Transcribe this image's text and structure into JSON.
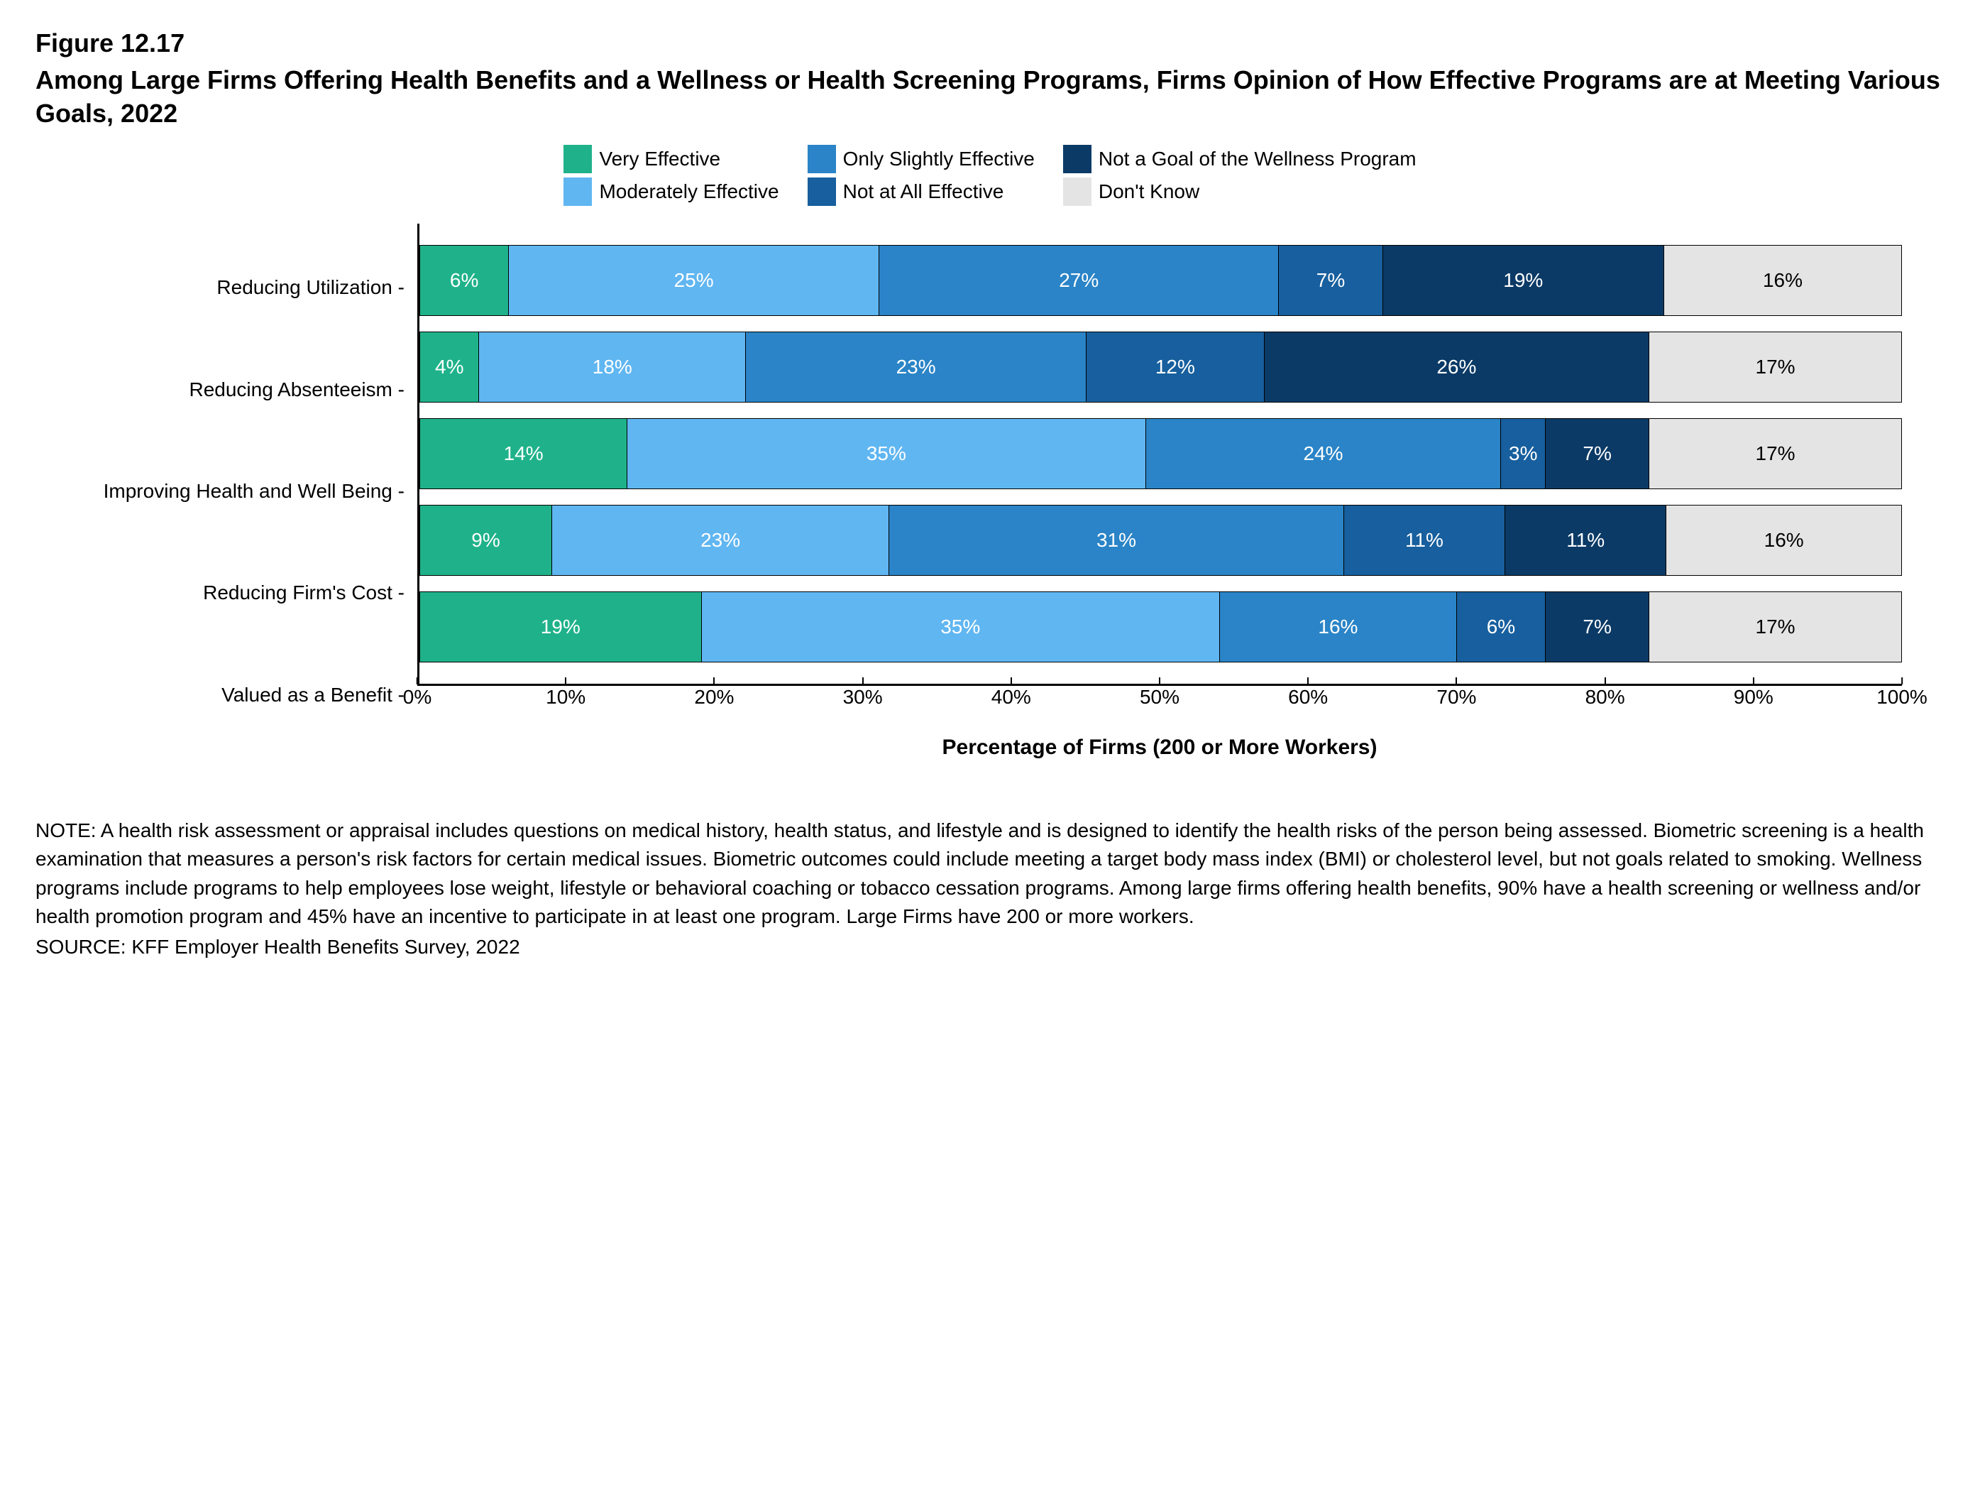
{
  "figure_label": "Figure 12.17",
  "title": "Among Large Firms Offering Health Benefits and a Wellness or Health Screening Programs, Firms Opinion of How Effective Programs are at Meeting Various Goals, 2022",
  "legend": {
    "items": [
      {
        "label": "Very Effective",
        "color": "#1fb28a"
      },
      {
        "label": "Only Slightly Effective",
        "color": "#2a84c7"
      },
      {
        "label": "Not a Goal of the Wellness Program",
        "color": "#0b3a66"
      },
      {
        "label": "Moderately Effective",
        "color": "#60b6f1"
      },
      {
        "label": "Not at All Effective",
        "color": "#175f9e"
      },
      {
        "label": "Don't Know",
        "color": "#e4e4e4"
      }
    ]
  },
  "segment_colors": [
    "#1fb28a",
    "#60b6f1",
    "#2a84c7",
    "#175f9e",
    "#0b3a66",
    "#e4e4e4"
  ],
  "segment_text_colors": [
    "#ffffff",
    "#ffffff",
    "#ffffff",
    "#ffffff",
    "#ffffff",
    "#000000"
  ],
  "categories": [
    {
      "label": "Reducing Utilization",
      "values": [
        6,
        25,
        27,
        7,
        19,
        16
      ]
    },
    {
      "label": "Reducing Absenteeism",
      "values": [
        4,
        18,
        23,
        12,
        26,
        17
      ]
    },
    {
      "label": "Improving Health and Well Being",
      "values": [
        14,
        35,
        24,
        3,
        7,
        17
      ]
    },
    {
      "label": "Reducing Firm's Cost",
      "values": [
        9,
        23,
        31,
        11,
        11,
        16
      ]
    },
    {
      "label": "Valued as a Benefit",
      "values": [
        19,
        35,
        16,
        6,
        7,
        17
      ]
    }
  ],
  "xaxis": {
    "label": "Percentage of Firms (200 or More Workers)",
    "min": 0,
    "max": 100,
    "step": 10,
    "ticks": [
      "0%",
      "10%",
      "20%",
      "30%",
      "40%",
      "50%",
      "60%",
      "70%",
      "80%",
      "90%",
      "100%"
    ]
  },
  "note": "NOTE: A health risk assessment or appraisal includes questions on medical history, health status, and lifestyle and is designed to identify the health risks of the person being assessed. Biometric screening is a health examination that measures a person's risk factors for certain medical issues. Biometric outcomes could include meeting a target body mass index (BMI) or cholesterol level, but not goals related to smoking. Wellness programs include programs to help employees lose weight, lifestyle or behavioral coaching or tobacco cessation programs. Among large firms offering health benefits, 90% have a health screening or wellness and/or health promotion program and 45% have an incentive to participate in at least one program. Large Firms have 200 or more workers.",
  "source": "SOURCE: KFF Employer Health Benefits Survey, 2022",
  "style": {
    "background_color": "#ffffff",
    "text_color": "#000000",
    "axis_color": "#000000",
    "bar_border_color": "#000000",
    "title_fontsize": 36,
    "axis_label_fontsize": 30,
    "tick_fontsize": 28,
    "category_label_fontsize": 28,
    "segment_label_fontsize": 28,
    "note_fontsize": 28
  }
}
